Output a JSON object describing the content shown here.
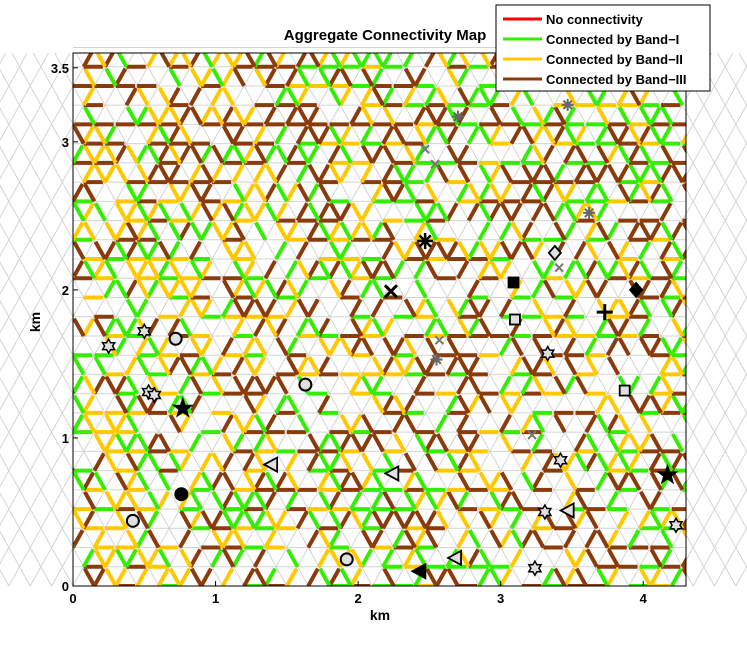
{
  "chart_data": {
    "type": "scatter",
    "title": "Aggregate Connectivity Map",
    "xlabel": "km",
    "ylabel": "km",
    "xlim": [
      0,
      4.3
    ],
    "ylim": [
      0,
      3.6
    ],
    "xticks": [
      "0",
      "1",
      "2",
      "3",
      "4"
    ],
    "yticks": [
      "0",
      "1",
      "2",
      "3",
      "3.5"
    ],
    "grid": false,
    "legend_position": "top-right",
    "series": [
      {
        "name": "No connectivity",
        "color": "#ff0000"
      },
      {
        "name": "Connected by Band−I",
        "color": "#33ee00"
      },
      {
        "name": "Connected by Band−II",
        "color": "#ffc800"
      },
      {
        "name": "Connected by Band−III",
        "color": "#8b3a0a"
      }
    ],
    "nodes": [
      {
        "marker": "hexagram",
        "x": 0.25,
        "y": 1.62
      },
      {
        "marker": "hexagram",
        "x": 0.5,
        "y": 1.72
      },
      {
        "marker": "circle",
        "x": 0.72,
        "y": 1.67
      },
      {
        "marker": "hexagram",
        "x": 0.53,
        "y": 1.31
      },
      {
        "marker": "hexagram",
        "x": 0.57,
        "y": 1.29
      },
      {
        "marker": "pentagram-filled",
        "x": 0.77,
        "y": 1.2
      },
      {
        "marker": "circle",
        "x": 1.63,
        "y": 1.36
      },
      {
        "marker": "triangle-left",
        "x": 1.39,
        "y": 0.82
      },
      {
        "marker": "circle-filled",
        "x": 0.76,
        "y": 0.62
      },
      {
        "marker": "circle",
        "x": 0.42,
        "y": 0.44
      },
      {
        "marker": "circle",
        "x": 1.92,
        "y": 0.18
      },
      {
        "marker": "triangle-left-filled",
        "x": 2.43,
        "y": 0.1
      },
      {
        "marker": "triangle-left",
        "x": 2.68,
        "y": 0.19
      },
      {
        "marker": "triangle-left",
        "x": 2.24,
        "y": 0.76
      },
      {
        "marker": "hexagram",
        "x": 3.24,
        "y": 0.12
      },
      {
        "marker": "hexagram",
        "x": 3.31,
        "y": 0.5
      },
      {
        "marker": "triangle-left",
        "x": 3.47,
        "y": 0.51
      },
      {
        "marker": "hexagram",
        "x": 3.42,
        "y": 0.85
      },
      {
        "marker": "pentagram-filled",
        "x": 4.17,
        "y": 0.75
      },
      {
        "marker": "hexagram",
        "x": 4.23,
        "y": 0.41
      },
      {
        "marker": "square",
        "x": 3.87,
        "y": 1.32
      },
      {
        "marker": "hexagram",
        "x": 3.33,
        "y": 1.57
      },
      {
        "marker": "square",
        "x": 3.1,
        "y": 1.8
      },
      {
        "marker": "square-filled",
        "x": 3.09,
        "y": 2.05
      },
      {
        "marker": "plus",
        "x": 3.73,
        "y": 1.85
      },
      {
        "marker": "diamond-filled",
        "x": 3.95,
        "y": 2.0
      },
      {
        "marker": "diamond",
        "x": 3.38,
        "y": 2.25
      },
      {
        "marker": "asterisk",
        "x": 2.47,
        "y": 2.33
      },
      {
        "marker": "cross",
        "x": 2.23,
        "y": 1.99
      },
      {
        "marker": "asterisk-gray",
        "x": 2.7,
        "y": 3.17
      },
      {
        "marker": "asterisk-gray",
        "x": 3.47,
        "y": 3.25
      },
      {
        "marker": "asterisk-gray",
        "x": 3.62,
        "y": 2.52
      },
      {
        "marker": "x-gray",
        "x": 2.47,
        "y": 2.95
      },
      {
        "marker": "x-gray",
        "x": 2.54,
        "y": 2.85
      },
      {
        "marker": "x-gray",
        "x": 3.41,
        "y": 2.15
      },
      {
        "marker": "asterisk-gray",
        "x": 2.55,
        "y": 1.53
      },
      {
        "marker": "x-gray",
        "x": 2.57,
        "y": 1.66
      },
      {
        "marker": "x-gray",
        "x": 3.22,
        "y": 1.02
      }
    ]
  }
}
